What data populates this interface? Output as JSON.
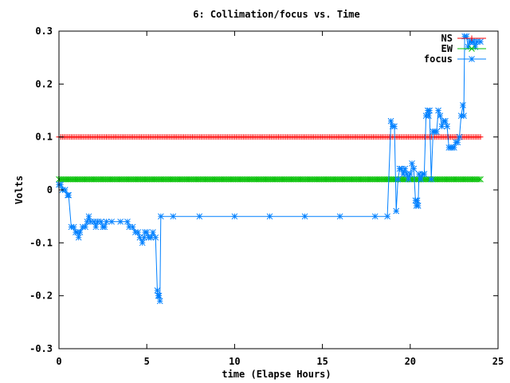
{
  "chart_data": {
    "type": "line",
    "title": "6: Collimation/focus vs. Time",
    "xlabel": "time (Elapse Hours)",
    "ylabel": "Volts",
    "xlim": [
      0,
      25
    ],
    "ylim": [
      -0.3,
      0.3
    ],
    "x_ticks": [
      "0",
      "5",
      "10",
      "15",
      "20",
      "25"
    ],
    "y_ticks": [
      "-0.3",
      "-0.2",
      "-0.1",
      "0",
      "0.1",
      "0.2",
      "0.3"
    ],
    "grid": false,
    "legend_position": "top-right",
    "series": [
      {
        "name": "NS",
        "color": "#ff0000",
        "marker": "plus",
        "points": [
          [
            0,
            0.1
          ],
          [
            24,
            0.1
          ]
        ]
      },
      {
        "name": "EW",
        "color": "#00c000",
        "marker": "cross",
        "points": [
          [
            0,
            0.02
          ],
          [
            24,
            0.02
          ]
        ]
      },
      {
        "name": "focus",
        "color": "#0080ff",
        "marker": "star",
        "points": [
          [
            0,
            0.01
          ],
          [
            0.1,
            0.01
          ],
          [
            0.2,
            0.0
          ],
          [
            0.35,
            0.0
          ],
          [
            0.5,
            -0.01
          ],
          [
            0.55,
            -0.01
          ],
          [
            0.7,
            -0.07
          ],
          [
            0.85,
            -0.07
          ],
          [
            0.95,
            -0.08
          ],
          [
            1.05,
            -0.08
          ],
          [
            1.12,
            -0.09
          ],
          [
            1.2,
            -0.08
          ],
          [
            1.35,
            -0.07
          ],
          [
            1.5,
            -0.07
          ],
          [
            1.6,
            -0.06
          ],
          [
            1.7,
            -0.05
          ],
          [
            1.8,
            -0.06
          ],
          [
            2.0,
            -0.06
          ],
          [
            2.1,
            -0.07
          ],
          [
            2.2,
            -0.06
          ],
          [
            2.4,
            -0.06
          ],
          [
            2.5,
            -0.07
          ],
          [
            2.6,
            -0.07
          ],
          [
            2.7,
            -0.06
          ],
          [
            3.0,
            -0.06
          ],
          [
            3.5,
            -0.06
          ],
          [
            3.9,
            -0.06
          ],
          [
            4.0,
            -0.07
          ],
          [
            4.2,
            -0.07
          ],
          [
            4.35,
            -0.08
          ],
          [
            4.5,
            -0.08
          ],
          [
            4.6,
            -0.09
          ],
          [
            4.75,
            -0.1
          ],
          [
            4.85,
            -0.09
          ],
          [
            4.9,
            -0.08
          ],
          [
            5.0,
            -0.08
          ],
          [
            5.1,
            -0.09
          ],
          [
            5.25,
            -0.09
          ],
          [
            5.35,
            -0.08
          ],
          [
            5.5,
            -0.09
          ],
          [
            5.6,
            -0.19
          ],
          [
            5.65,
            -0.2
          ],
          [
            5.7,
            -0.2
          ],
          [
            5.75,
            -0.21
          ],
          [
            5.8,
            -0.05
          ],
          [
            6.5,
            -0.05
          ],
          [
            8,
            -0.05
          ],
          [
            10,
            -0.05
          ],
          [
            12,
            -0.05
          ],
          [
            14,
            -0.05
          ],
          [
            16,
            -0.05
          ],
          [
            18,
            -0.05
          ],
          [
            18.7,
            -0.05
          ],
          [
            18.9,
            0.13
          ],
          [
            19.0,
            0.12
          ],
          [
            19.1,
            0.12
          ],
          [
            19.2,
            -0.04
          ],
          [
            19.3,
            0.02
          ],
          [
            19.4,
            0.04
          ],
          [
            19.5,
            0.04
          ],
          [
            19.6,
            0.03
          ],
          [
            19.7,
            0.04
          ],
          [
            19.8,
            0.03
          ],
          [
            19.9,
            0.02
          ],
          [
            20.0,
            0.03
          ],
          [
            20.1,
            0.05
          ],
          [
            20.2,
            0.04
          ],
          [
            20.3,
            -0.02
          ],
          [
            20.35,
            -0.03
          ],
          [
            20.4,
            -0.02
          ],
          [
            20.45,
            -0.03
          ],
          [
            20.5,
            0.03
          ],
          [
            20.6,
            0.02
          ],
          [
            20.7,
            0.03
          ],
          [
            20.8,
            0.03
          ],
          [
            20.9,
            0.14
          ],
          [
            21.0,
            0.15
          ],
          [
            21.05,
            0.14
          ],
          [
            21.1,
            0.15
          ],
          [
            21.2,
            0.02
          ],
          [
            21.3,
            0.11
          ],
          [
            21.4,
            0.11
          ],
          [
            21.5,
            0.11
          ],
          [
            21.6,
            0.15
          ],
          [
            21.7,
            0.14
          ],
          [
            21.8,
            0.12
          ],
          [
            21.9,
            0.13
          ],
          [
            22.0,
            0.13
          ],
          [
            22.1,
            0.12
          ],
          [
            22.2,
            0.08
          ],
          [
            22.3,
            0.08
          ],
          [
            22.4,
            0.08
          ],
          [
            22.5,
            0.08
          ],
          [
            22.6,
            0.09
          ],
          [
            22.7,
            0.09
          ],
          [
            22.8,
            0.1
          ],
          [
            22.9,
            0.14
          ],
          [
            23.0,
            0.16
          ],
          [
            23.05,
            0.14
          ],
          [
            23.1,
            0.29
          ],
          [
            23.2,
            0.29
          ],
          [
            23.3,
            0.27
          ],
          [
            23.4,
            0.28
          ],
          [
            23.5,
            0.28
          ],
          [
            23.6,
            0.28
          ],
          [
            23.7,
            0.27
          ],
          [
            23.8,
            0.28
          ],
          [
            24.0,
            0.28
          ]
        ]
      }
    ]
  }
}
